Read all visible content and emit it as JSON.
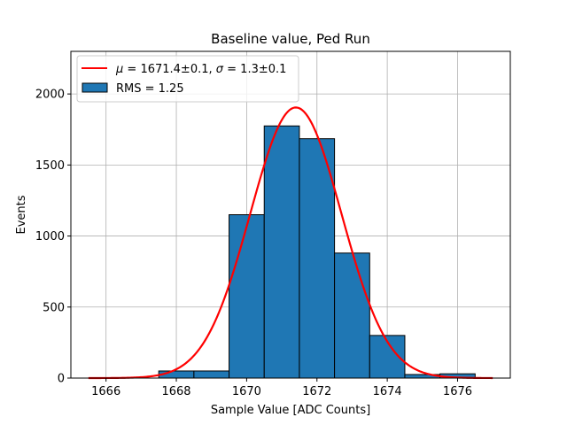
{
  "chart_data": {
    "type": "bar",
    "title": "Baseline value, Ped Run",
    "xlabel": "Sample Value [ADC Counts]",
    "ylabel": "Events",
    "xlim": [
      1665,
      1677.5
    ],
    "ylim": [
      0,
      2300
    ],
    "xticks": [
      1666,
      1668,
      1670,
      1672,
      1674,
      1676
    ],
    "yticks": [
      0,
      500,
      1000,
      1500,
      2000
    ],
    "grid": true,
    "legend_position": "top-left",
    "histogram": {
      "name": "RMS = 1.25",
      "color": "#1f77b4",
      "edge_color": "#000000",
      "bins": [
        {
          "x0": 1667.5,
          "x1": 1668.5,
          "value": 50
        },
        {
          "x0": 1668.5,
          "x1": 1669.5,
          "value": 50
        },
        {
          "x0": 1669.5,
          "x1": 1670.5,
          "value": 1150
        },
        {
          "x0": 1670.5,
          "x1": 1671.5,
          "value": 1775
        },
        {
          "x0": 1671.5,
          "x1": 1672.5,
          "value": 1685
        },
        {
          "x0": 1672.5,
          "x1": 1673.5,
          "value": 880
        },
        {
          "x0": 1673.5,
          "x1": 1674.5,
          "value": 300
        },
        {
          "x0": 1674.5,
          "x1": 1675.5,
          "value": 25
        },
        {
          "x0": 1675.5,
          "x1": 1676.5,
          "value": 30
        }
      ]
    },
    "fit": {
      "label_mu_prefix": "μ",
      "label_mid": " = 1671.4±0.1, ",
      "label_sigma_prefix": "σ",
      "label_suffix": " = 1.3±0.1",
      "color": "#ff0000",
      "mu": 1671.4,
      "sigma": 1.3,
      "amplitude": 1905,
      "x_range": [
        1665.5,
        1677
      ]
    }
  },
  "colors": {
    "grid": "#b0b0b0",
    "axes": "#000000"
  }
}
